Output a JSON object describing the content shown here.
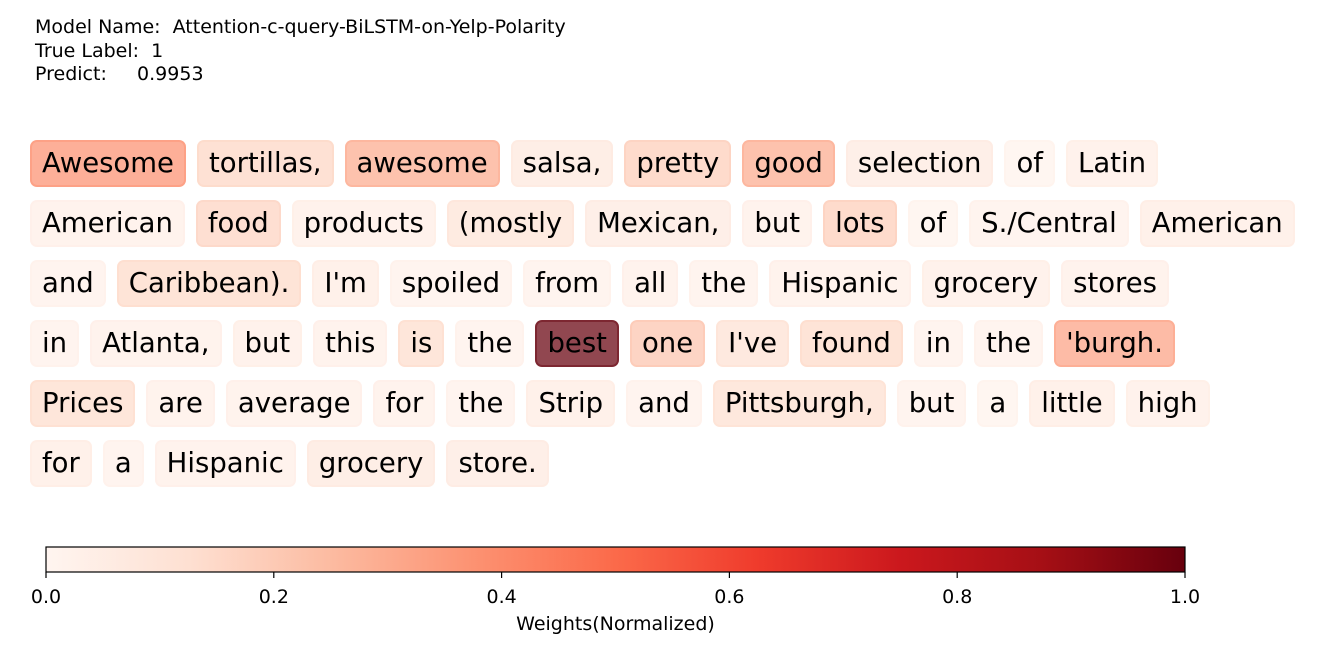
{
  "header": {
    "model_label": "Model Name:",
    "model_value": "Attention-c-query-BiLSTM-on-Yelp-Polarity",
    "true_label_label": "True Label:",
    "true_label_value": "1",
    "predict_label": "Predict:",
    "predict_value": "0.9953"
  },
  "chart_data": {
    "type": "heatmap",
    "colormap": "Reds",
    "colorbar": {
      "label": "Weights(Normalized)",
      "range": [
        0.0,
        1.0
      ],
      "ticks": [
        "0.0",
        "0.2",
        "0.4",
        "0.6",
        "0.8",
        "1.0"
      ]
    },
    "lines": [
      [
        [
          "Awesome",
          0.38
        ],
        [
          "tortillas,",
          0.16
        ],
        [
          "awesome",
          0.3
        ],
        [
          "salsa,",
          0.08
        ],
        [
          "pretty",
          0.19
        ],
        [
          "good",
          0.3
        ],
        [
          "selection",
          0.07
        ],
        [
          "of",
          0.02
        ],
        [
          "Latin",
          0.05
        ]
      ],
      [
        [
          "American",
          0.04
        ],
        [
          "food",
          0.17
        ],
        [
          "products",
          0.05
        ],
        [
          "(mostly",
          0.11
        ],
        [
          "Mexican,",
          0.07
        ],
        [
          "but",
          0.04
        ],
        [
          "lots",
          0.19
        ],
        [
          "of",
          0.02
        ],
        [
          "S./Central",
          0.03
        ],
        [
          "American",
          0.06
        ]
      ],
      [
        [
          "and",
          0.03
        ],
        [
          "Caribbean).",
          0.15
        ],
        [
          "I'm",
          0.06
        ],
        [
          "spoiled",
          0.03
        ],
        [
          "from",
          0.03
        ],
        [
          "all",
          0.04
        ],
        [
          "the",
          0.03
        ],
        [
          "Hispanic",
          0.04
        ],
        [
          "grocery",
          0.05
        ],
        [
          "stores",
          0.04
        ]
      ],
      [
        [
          "in",
          0.03
        ],
        [
          "Atlanta,",
          0.04
        ],
        [
          "but",
          0.05
        ],
        [
          "this",
          0.04
        ],
        [
          "is",
          0.14
        ],
        [
          "the",
          0.03
        ],
        [
          "best",
          1.0
        ],
        [
          "one",
          0.22
        ],
        [
          "I've",
          0.12
        ],
        [
          "found",
          0.15
        ],
        [
          "in",
          0.03
        ],
        [
          "the",
          0.03
        ],
        [
          "'burgh.",
          0.33
        ]
      ],
      [
        [
          "Prices",
          0.14
        ],
        [
          "are",
          0.04
        ],
        [
          "average",
          0.04
        ],
        [
          "for",
          0.04
        ],
        [
          "the",
          0.03
        ],
        [
          "Strip",
          0.06
        ],
        [
          "and",
          0.03
        ],
        [
          "Pittsburgh,",
          0.13
        ],
        [
          "but",
          0.03
        ],
        [
          "a",
          0.02
        ],
        [
          "little",
          0.06
        ],
        [
          "high",
          0.05
        ]
      ],
      [
        [
          "for",
          0.06
        ],
        [
          "a",
          0.03
        ],
        [
          "Hispanic",
          0.04
        ],
        [
          "grocery",
          0.08
        ],
        [
          "store.",
          0.07
        ]
      ]
    ]
  }
}
